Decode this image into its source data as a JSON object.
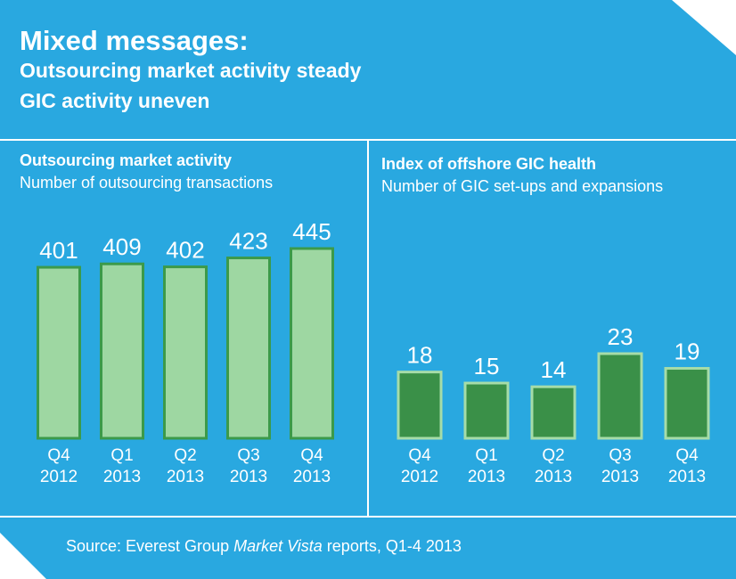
{
  "header": {
    "title": "Mixed messages:",
    "subtitle_line1": "Outsourcing market activity steady",
    "subtitle_line2": "GIC activity uneven"
  },
  "footer": {
    "source_prefix": "Source: Everest Group ",
    "source_italic": "Market Vista",
    "source_suffix": " reports, Q1-4 2013"
  },
  "colors": {
    "background": "#29a8e0",
    "divider": "#ffffff",
    "left_bar_fill": "#9ed7a2",
    "left_bar_stroke": "#3c9a4a",
    "right_bar_fill": "#3a9048",
    "right_bar_stroke": "#a6dca8"
  },
  "chart_data": [
    {
      "type": "bar",
      "title": "Outsourcing market activity",
      "subtitle": "Number of outsourcing transactions",
      "categories": [
        [
          "Q4",
          "2012"
        ],
        [
          "Q1",
          "2013"
        ],
        [
          "Q2",
          "2013"
        ],
        [
          "Q3",
          "2013"
        ],
        [
          "Q4",
          "2013"
        ]
      ],
      "values": [
        401,
        409,
        402,
        423,
        445
      ],
      "ylim": [
        0,
        445
      ],
      "grid": false,
      "legend": "none"
    },
    {
      "type": "bar",
      "title": "Index of offshore GIC health",
      "subtitle": "Number of GIC set-ups and expansions",
      "categories": [
        [
          "Q4",
          "2012"
        ],
        [
          "Q1",
          "2013"
        ],
        [
          "Q2",
          "2013"
        ],
        [
          "Q3",
          "2013"
        ],
        [
          "Q4",
          "2013"
        ]
      ],
      "values": [
        18,
        15,
        14,
        23,
        19
      ],
      "ylim": [
        0,
        23
      ],
      "grid": false,
      "legend": "none"
    }
  ]
}
